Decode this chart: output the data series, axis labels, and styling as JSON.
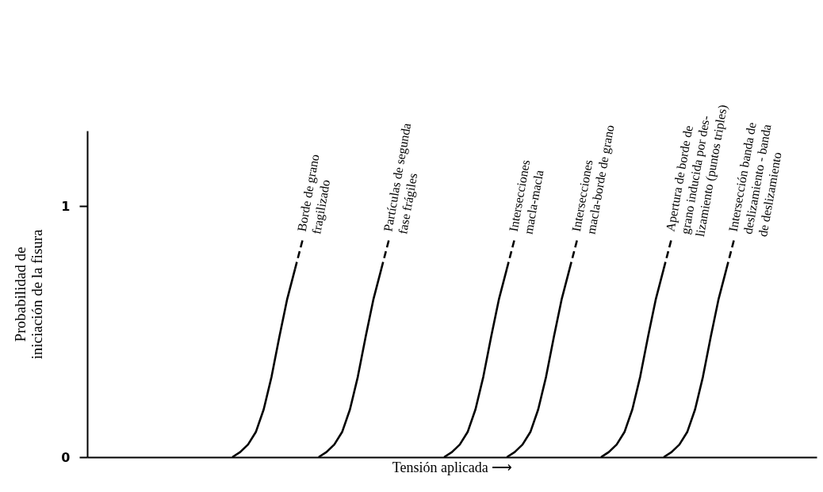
{
  "chart_data": {
    "type": "line",
    "xlabel": "Tensión aplicada ⟶",
    "ylabel": "Probabilidad de\niniciación de la fisura",
    "categories": [
      null,
      null,
      null,
      null,
      null,
      null,
      null,
      null,
      null,
      null,
      null,
      null,
      null,
      null,
      null,
      null,
      null,
      null,
      null,
      null,
      null,
      null,
      null,
      null,
      null,
      null,
      null,
      null,
      null,
      null,
      null,
      null,
      null,
      null,
      null,
      null,
      null,
      null,
      null,
      null,
      null,
      null,
      null,
      null,
      null,
      null,
      null,
      null,
      null,
      null,
      null,
      null,
      null,
      null,
      null,
      null,
      null,
      null,
      null,
      null,
      null,
      null,
      null,
      null,
      null,
      null,
      null,
      null,
      null,
      null,
      null,
      null,
      null,
      null,
      null,
      null,
      null,
      null,
      null,
      null,
      null,
      null,
      null,
      null,
      null,
      null,
      null,
      null,
      null,
      null,
      null,
      null,
      null
    ],
    "ylim": [
      0,
      1.3
    ],
    "yticks": [
      0,
      1
    ],
    "legend": false,
    "series": [
      {
        "name": "Borde de grano\nfragilizado",
        "color": "#000000",
        "line_style": "solid",
        "values": [
          null,
          null,
          null,
          null,
          null,
          null,
          null,
          null,
          null,
          null,
          null,
          null,
          null,
          null,
          null,
          null,
          null,
          null,
          0,
          0.02,
          0.05,
          0.1,
          0.19,
          0.32,
          0.48,
          0.63,
          0.75,
          null,
          null,
          null,
          null,
          null,
          null,
          null,
          null,
          null,
          null,
          null,
          null,
          null,
          null,
          null,
          null,
          null,
          null,
          null,
          null,
          null,
          null,
          null,
          null,
          null,
          null,
          null,
          null,
          null,
          null,
          null,
          null,
          null,
          null,
          null,
          null,
          null,
          null,
          null,
          null,
          null,
          null,
          null,
          null,
          null,
          null,
          null,
          null,
          null,
          null,
          null,
          null,
          null,
          null,
          null,
          null,
          null,
          null,
          null,
          null,
          null,
          null,
          null,
          null,
          null,
          null
        ]
      },
      {
        "color": "#000000",
        "line_style": "dashed",
        "values": [
          null,
          null,
          null,
          null,
          null,
          null,
          null,
          null,
          null,
          null,
          null,
          null,
          null,
          null,
          null,
          null,
          null,
          null,
          null,
          null,
          null,
          null,
          null,
          null,
          null,
          null,
          0.75,
          0.87,
          null,
          null,
          null,
          null,
          null,
          null,
          null,
          null,
          null,
          null,
          null,
          null,
          null,
          null,
          null,
          null,
          null,
          null,
          null,
          null,
          null,
          null,
          null,
          null,
          null,
          null,
          null,
          null,
          null,
          null,
          null,
          null,
          null,
          null,
          null,
          null,
          null,
          null,
          null,
          null,
          null,
          null,
          null,
          null,
          null,
          null,
          null,
          null,
          null,
          null,
          null,
          null,
          null,
          null,
          null,
          null,
          null,
          null,
          null,
          null,
          null,
          null,
          null,
          null,
          null
        ]
      },
      {
        "name": "Partículas de segunda\nfase frágiles",
        "color": "#000000",
        "line_style": "solid",
        "values": [
          null,
          null,
          null,
          null,
          null,
          null,
          null,
          null,
          null,
          null,
          null,
          null,
          null,
          null,
          null,
          null,
          null,
          null,
          null,
          null,
          null,
          null,
          null,
          null,
          null,
          null,
          null,
          null,
          null,
          0,
          0.02,
          0.05,
          0.1,
          0.19,
          0.32,
          0.48,
          0.63,
          0.75,
          null,
          null,
          null,
          null,
          null,
          null,
          null,
          null,
          null,
          null,
          null,
          null,
          null,
          null,
          null,
          null,
          null,
          null,
          null,
          null,
          null,
          null,
          null,
          null,
          null,
          null,
          null,
          null,
          null,
          null,
          null,
          null,
          null,
          null,
          null,
          null,
          null,
          null,
          null,
          null,
          null,
          null,
          null,
          null,
          null,
          null,
          null,
          null,
          null,
          null,
          null,
          null,
          null,
          null,
          null
        ]
      },
      {
        "color": "#000000",
        "line_style": "dashed",
        "values": [
          null,
          null,
          null,
          null,
          null,
          null,
          null,
          null,
          null,
          null,
          null,
          null,
          null,
          null,
          null,
          null,
          null,
          null,
          null,
          null,
          null,
          null,
          null,
          null,
          null,
          null,
          null,
          null,
          null,
          null,
          null,
          null,
          null,
          null,
          null,
          null,
          null,
          0.75,
          0.87,
          null,
          null,
          null,
          null,
          null,
          null,
          null,
          null,
          null,
          null,
          null,
          null,
          null,
          null,
          null,
          null,
          null,
          null,
          null,
          null,
          null,
          null,
          null,
          null,
          null,
          null,
          null,
          null,
          null,
          null,
          null,
          null,
          null,
          null,
          null,
          null,
          null,
          null,
          null,
          null,
          null,
          null,
          null,
          null,
          null,
          null,
          null,
          null,
          null,
          null,
          null,
          null,
          null,
          null
        ]
      },
      {
        "name": "Intersecciones\nmacla-macla",
        "color": "#000000",
        "line_style": "solid",
        "values": [
          null,
          null,
          null,
          null,
          null,
          null,
          null,
          null,
          null,
          null,
          null,
          null,
          null,
          null,
          null,
          null,
          null,
          null,
          null,
          null,
          null,
          null,
          null,
          null,
          null,
          null,
          null,
          null,
          null,
          null,
          null,
          null,
          null,
          null,
          null,
          null,
          null,
          null,
          null,
          null,
          null,
          null,
          null,
          null,
          null,
          0,
          0.02,
          0.05,
          0.1,
          0.19,
          0.32,
          0.48,
          0.63,
          0.75,
          null,
          null,
          null,
          null,
          null,
          null,
          null,
          null,
          null,
          null,
          null,
          null,
          null,
          null,
          null,
          null,
          null,
          null,
          null,
          null,
          null,
          null,
          null,
          null,
          null,
          null,
          null,
          null,
          null,
          null,
          null,
          null,
          null,
          null,
          null,
          null,
          null,
          null,
          null
        ]
      },
      {
        "color": "#000000",
        "line_style": "dashed",
        "values": [
          null,
          null,
          null,
          null,
          null,
          null,
          null,
          null,
          null,
          null,
          null,
          null,
          null,
          null,
          null,
          null,
          null,
          null,
          null,
          null,
          null,
          null,
          null,
          null,
          null,
          null,
          null,
          null,
          null,
          null,
          null,
          null,
          null,
          null,
          null,
          null,
          null,
          null,
          null,
          null,
          null,
          null,
          null,
          null,
          null,
          null,
          null,
          null,
          null,
          null,
          null,
          null,
          null,
          0.75,
          0.87,
          null,
          null,
          null,
          null,
          null,
          null,
          null,
          null,
          null,
          null,
          null,
          null,
          null,
          null,
          null,
          null,
          null,
          null,
          null,
          null,
          null,
          null,
          null,
          null,
          null,
          null,
          null,
          null,
          null,
          null,
          null,
          null,
          null,
          null,
          null,
          null,
          null,
          null
        ]
      },
      {
        "name": "Intersecciones\nmacla-borde de grano",
        "color": "#000000",
        "line_style": "solid",
        "values": [
          null,
          null,
          null,
          null,
          null,
          null,
          null,
          null,
          null,
          null,
          null,
          null,
          null,
          null,
          null,
          null,
          null,
          null,
          null,
          null,
          null,
          null,
          null,
          null,
          null,
          null,
          null,
          null,
          null,
          null,
          null,
          null,
          null,
          null,
          null,
          null,
          null,
          null,
          null,
          null,
          null,
          null,
          null,
          null,
          null,
          null,
          null,
          null,
          null,
          null,
          null,
          null,
          null,
          0,
          0.02,
          0.05,
          0.1,
          0.19,
          0.32,
          0.48,
          0.63,
          0.75,
          null,
          null,
          null,
          null,
          null,
          null,
          null,
          null,
          null,
          null,
          null,
          null,
          null,
          null,
          null,
          null,
          null,
          null,
          null,
          null,
          null,
          null,
          null,
          null,
          null,
          null,
          null,
          null,
          null,
          null,
          null
        ]
      },
      {
        "color": "#000000",
        "line_style": "dashed",
        "values": [
          null,
          null,
          null,
          null,
          null,
          null,
          null,
          null,
          null,
          null,
          null,
          null,
          null,
          null,
          null,
          null,
          null,
          null,
          null,
          null,
          null,
          null,
          null,
          null,
          null,
          null,
          null,
          null,
          null,
          null,
          null,
          null,
          null,
          null,
          null,
          null,
          null,
          null,
          null,
          null,
          null,
          null,
          null,
          null,
          null,
          null,
          null,
          null,
          null,
          null,
          null,
          null,
          null,
          null,
          null,
          null,
          null,
          null,
          null,
          null,
          null,
          0.75,
          0.87,
          null,
          null,
          null,
          null,
          null,
          null,
          null,
          null,
          null,
          null,
          null,
          null,
          null,
          null,
          null,
          null,
          null,
          null,
          null,
          null,
          null,
          null,
          null,
          null,
          null,
          null,
          null,
          null,
          null,
          null
        ]
      },
      {
        "name": "Apertura de borde de\ngrano inducida por des-\nlizamiento (puntos triples)",
        "color": "#000000",
        "line_style": "solid",
        "values": [
          null,
          null,
          null,
          null,
          null,
          null,
          null,
          null,
          null,
          null,
          null,
          null,
          null,
          null,
          null,
          null,
          null,
          null,
          null,
          null,
          null,
          null,
          null,
          null,
          null,
          null,
          null,
          null,
          null,
          null,
          null,
          null,
          null,
          null,
          null,
          null,
          null,
          null,
          null,
          null,
          null,
          null,
          null,
          null,
          null,
          null,
          null,
          null,
          null,
          null,
          null,
          null,
          null,
          null,
          null,
          null,
          null,
          null,
          null,
          null,
          null,
          null,
          null,
          null,
          null,
          0,
          0.02,
          0.05,
          0.1,
          0.19,
          0.32,
          0.48,
          0.63,
          0.75,
          null,
          null,
          null,
          null,
          null,
          null,
          null,
          null,
          null,
          null,
          null,
          null,
          null,
          null,
          null,
          null,
          null,
          null,
          null
        ]
      },
      {
        "color": "#000000",
        "line_style": "dashed",
        "values": [
          null,
          null,
          null,
          null,
          null,
          null,
          null,
          null,
          null,
          null,
          null,
          null,
          null,
          null,
          null,
          null,
          null,
          null,
          null,
          null,
          null,
          null,
          null,
          null,
          null,
          null,
          null,
          null,
          null,
          null,
          null,
          null,
          null,
          null,
          null,
          null,
          null,
          null,
          null,
          null,
          null,
          null,
          null,
          null,
          null,
          null,
          null,
          null,
          null,
          null,
          null,
          null,
          null,
          null,
          null,
          null,
          null,
          null,
          null,
          null,
          null,
          null,
          null,
          null,
          null,
          null,
          null,
          null,
          null,
          null,
          null,
          null,
          null,
          0.75,
          0.87,
          null,
          null,
          null,
          null,
          null,
          null,
          null,
          null,
          null,
          null,
          null,
          null,
          null,
          null,
          null,
          null,
          null,
          null
        ]
      },
      {
        "name": "Intersección banda de\ndeslizamiento - banda\nde deslizamiento",
        "color": "#000000",
        "line_style": "solid",
        "values": [
          null,
          null,
          null,
          null,
          null,
          null,
          null,
          null,
          null,
          null,
          null,
          null,
          null,
          null,
          null,
          null,
          null,
          null,
          null,
          null,
          null,
          null,
          null,
          null,
          null,
          null,
          null,
          null,
          null,
          null,
          null,
          null,
          null,
          null,
          null,
          null,
          null,
          null,
          null,
          null,
          null,
          null,
          null,
          null,
          null,
          null,
          null,
          null,
          null,
          null,
          null,
          null,
          null,
          null,
          null,
          null,
          null,
          null,
          null,
          null,
          null,
          null,
          null,
          null,
          null,
          null,
          null,
          null,
          null,
          null,
          null,
          null,
          null,
          0,
          0.02,
          0.05,
          0.1,
          0.19,
          0.32,
          0.48,
          0.63,
          0.75,
          null,
          null,
          null,
          null,
          null,
          null,
          null,
          null,
          null,
          null,
          null
        ]
      },
      {
        "color": "#000000",
        "line_style": "dashed",
        "values": [
          null,
          null,
          null,
          null,
          null,
          null,
          null,
          null,
          null,
          null,
          null,
          null,
          null,
          null,
          null,
          null,
          null,
          null,
          null,
          null,
          null,
          null,
          null,
          null,
          null,
          null,
          null,
          null,
          null,
          null,
          null,
          null,
          null,
          null,
          null,
          null,
          null,
          null,
          null,
          null,
          null,
          null,
          null,
          null,
          null,
          null,
          null,
          null,
          null,
          null,
          null,
          null,
          null,
          null,
          null,
          null,
          null,
          null,
          null,
          null,
          null,
          null,
          null,
          null,
          null,
          null,
          null,
          null,
          null,
          null,
          null,
          null,
          null,
          null,
          null,
          null,
          null,
          null,
          null,
          null,
          null,
          0.75,
          0.87,
          null,
          null,
          null,
          null,
          null,
          null,
          null,
          null,
          null,
          null
        ]
      }
    ]
  }
}
